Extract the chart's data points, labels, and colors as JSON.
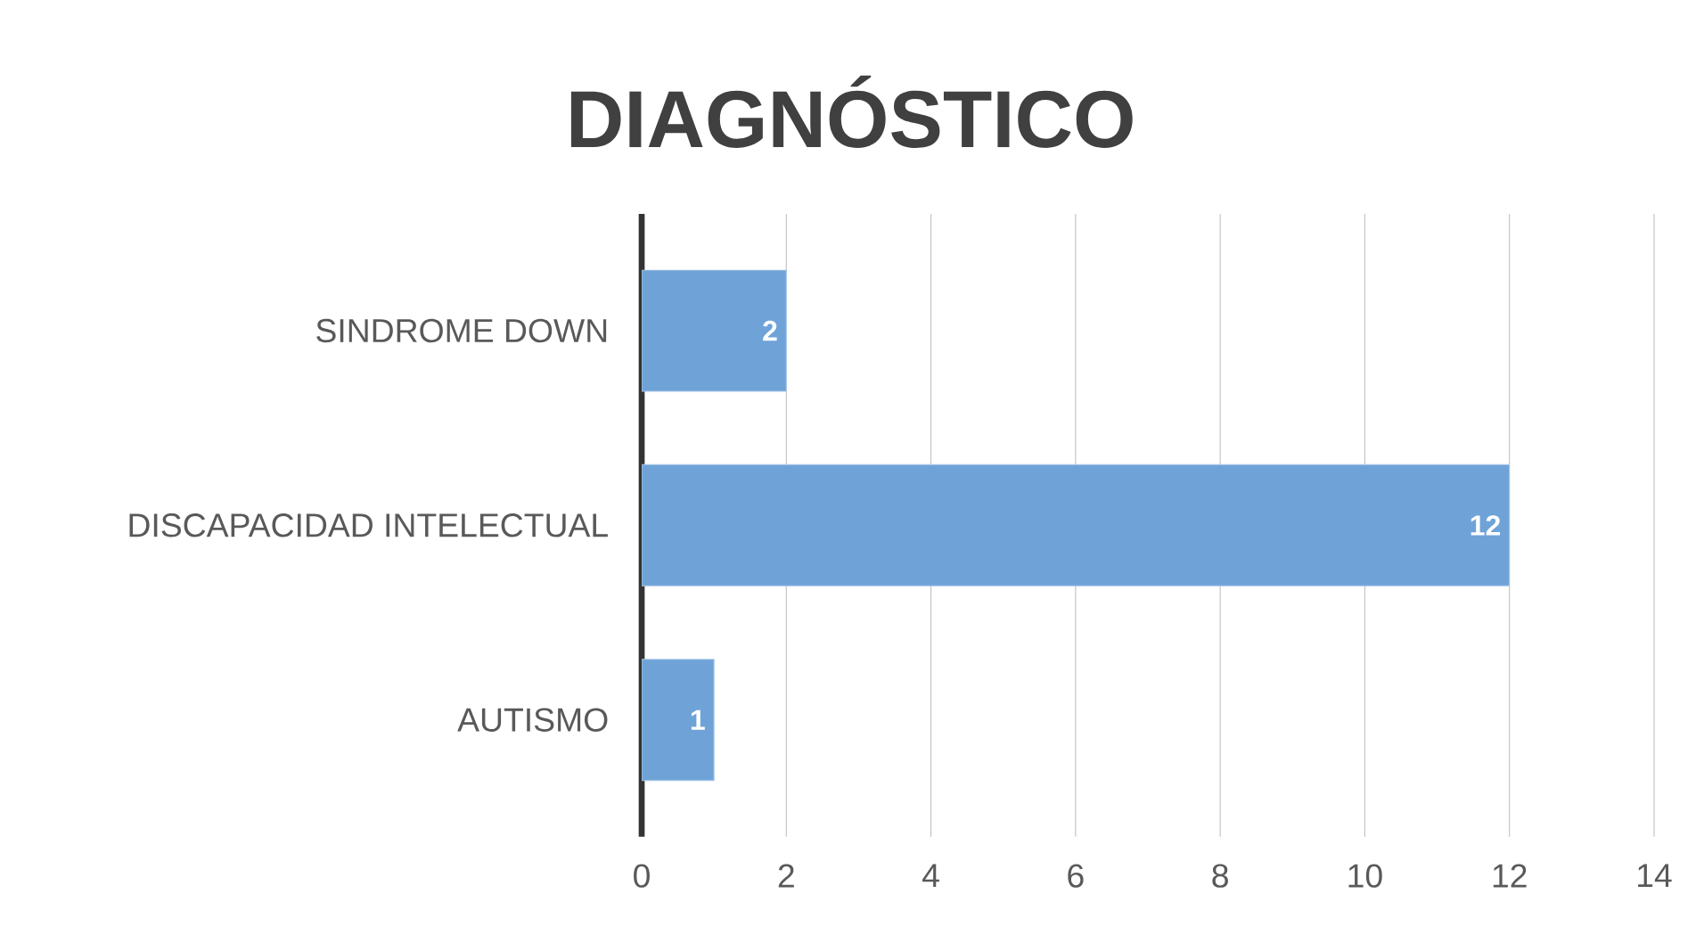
{
  "chart_data": {
    "type": "bar",
    "orientation": "horizontal",
    "title": "DIAGNÓSTICO",
    "categories": [
      "SINDROME DOWN",
      "DISCAPACIDAD INTELECTUAL",
      "AUTISMO"
    ],
    "values": [
      2,
      12,
      1
    ],
    "color": "#6fa3d8",
    "xlim": [
      0,
      14
    ],
    "xticks": [
      0,
      2,
      4,
      6,
      8,
      10,
      12,
      14
    ],
    "grid": "x",
    "data_labels": true
  }
}
